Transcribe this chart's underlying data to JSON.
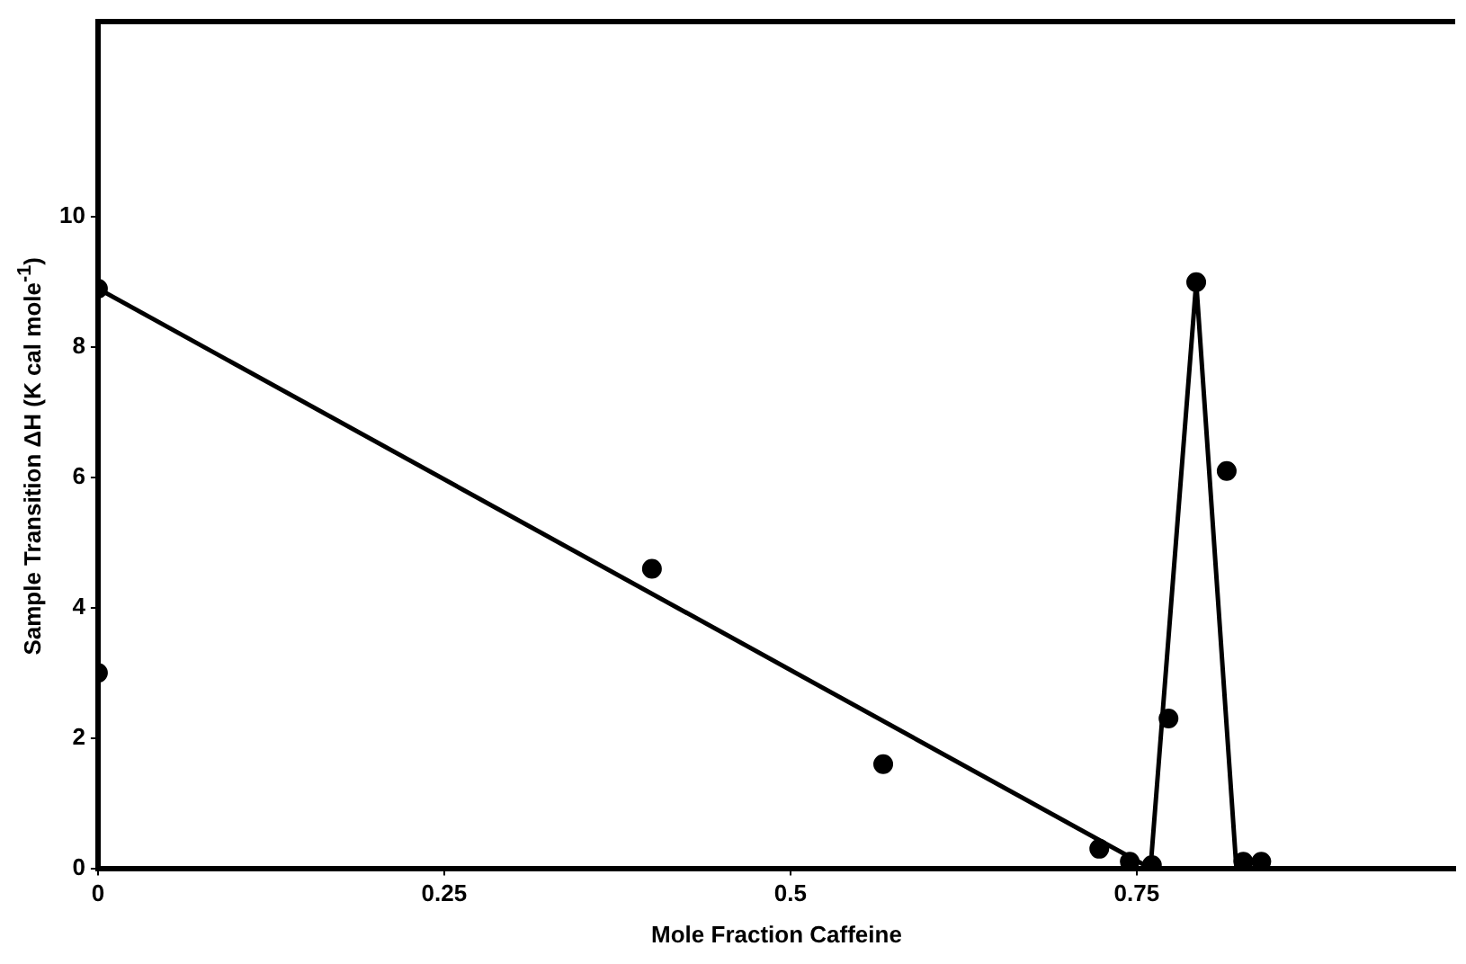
{
  "chart_data": {
    "type": "scatter",
    "xlabel": "Mole Fraction Caffeine",
    "ylabel": "Sample Transition ΔH (K cal mole$^{-1}$)",
    "xlim": [
      0,
      0.98
    ],
    "ylim": [
      0,
      13
    ],
    "xticks": [
      0,
      0.25,
      0.5,
      0.75
    ],
    "yticks": [
      0,
      2,
      4,
      6,
      8,
      10
    ],
    "grid": false,
    "legend": false,
    "marker": "circle",
    "series": [
      {
        "color": "#000000",
        "x": [
          0,
          0,
          0.4,
          0.567,
          0.723,
          0.745,
          0.761,
          0.773,
          0.793,
          0.815,
          0.827,
          0.84
        ],
        "values": [
          8.9,
          3,
          4.6,
          1.6,
          0.3,
          0.1,
          0.05,
          2.3,
          9,
          6.1,
          0.1,
          0.1
        ]
      },
      {
        "type": "line",
        "color": "#000000",
        "line_style": "solid",
        "marker": "none",
        "x": [
          0,
          0.76
        ],
        "values": [
          8.9,
          0
        ]
      },
      {
        "type": "line",
        "color": "#000000",
        "line_style": "solid",
        "marker": "none",
        "x": [
          0.76,
          0.793,
          0.822
        ],
        "values": [
          0,
          9,
          0
        ]
      }
    ]
  }
}
